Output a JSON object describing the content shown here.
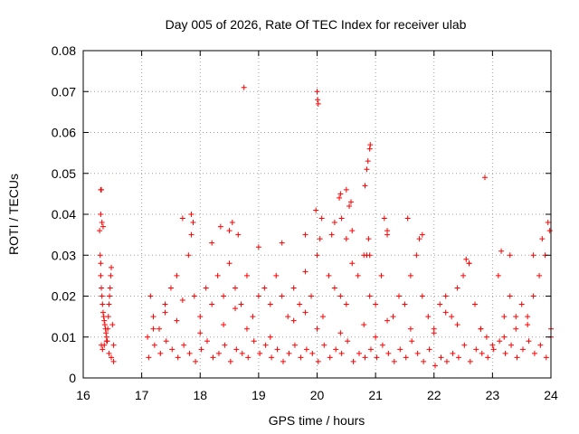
{
  "chart_data": {
    "type": "scatter",
    "title": "Day 005 of 2026, Rate Of TEC Index for receiver ulab",
    "xlabel": "GPS time / hours",
    "ylabel": "ROTI / TECUs",
    "xlim": [
      16,
      24
    ],
    "ylim": [
      0,
      0.08
    ],
    "xticks": [
      "16",
      "17",
      "18",
      "19",
      "20",
      "21",
      "22",
      "23",
      "24"
    ],
    "yticks": [
      "0",
      "0.01",
      "0.02",
      "0.03",
      "0.04",
      "0.05",
      "0.06",
      "0.07",
      "0.08"
    ],
    "grid": true,
    "marker": "+",
    "color": "#ff0000",
    "series": [
      {
        "name": "ROTI",
        "x": [
          16.28,
          16.29,
          16.3,
          16.3,
          16.31,
          16.32,
          16.33,
          16.34,
          16.35,
          16.36,
          16.37,
          16.38,
          16.39,
          16.4,
          16.41,
          16.42,
          16.43,
          16.44,
          16.45,
          16.46,
          16.47,
          16.48,
          16.5,
          16.52,
          16.31,
          16.33,
          16.36,
          16.4,
          16.44,
          16.48,
          16.52,
          16.3,
          16.31,
          16.32,
          16.34,
          16.3,
          17.1,
          17.15,
          17.2,
          17.3,
          17.4,
          17.5,
          17.6,
          17.7,
          17.8,
          17.85,
          17.9,
          18.0,
          18.1,
          18.2,
          18.3,
          18.4,
          18.5,
          18.6,
          18.7,
          18.8,
          18.9,
          19.0,
          19.1,
          19.2,
          19.3,
          19.4,
          19.5,
          19.6,
          19.7,
          19.8,
          19.9,
          20.0,
          20.1,
          20.2,
          20.3,
          20.4,
          20.5,
          20.6,
          20.7,
          20.8,
          20.9,
          21.0,
          21.1,
          21.2,
          21.3,
          21.4,
          21.5,
          21.6,
          21.7,
          21.8,
          21.9,
          22.0,
          22.1,
          22.2,
          22.3,
          22.4,
          22.5,
          22.6,
          22.7,
          22.8,
          22.9,
          23.0,
          23.1,
          23.2,
          23.3,
          23.4,
          23.5,
          23.6,
          23.7,
          23.8,
          23.9,
          24.0,
          17.12,
          17.22,
          17.32,
          17.42,
          17.52,
          17.62,
          17.72,
          17.82,
          17.92,
          18.02,
          18.12,
          18.22,
          18.32,
          18.42,
          18.52,
          18.62,
          18.72,
          18.82,
          18.92,
          19.02,
          19.12,
          19.22,
          19.32,
          19.42,
          19.52,
          19.62,
          19.72,
          19.82,
          19.92,
          20.02,
          20.12,
          20.22,
          20.32,
          20.42,
          20.52,
          20.62,
          20.72,
          20.82,
          20.92,
          21.02,
          21.12,
          21.22,
          21.32,
          21.42,
          21.52,
          21.62,
          21.72,
          21.82,
          21.92,
          22.02,
          22.12,
          22.22,
          22.32,
          22.42,
          22.52,
          22.62,
          22.72,
          22.82,
          22.92,
          23.02,
          23.12,
          23.22,
          23.32,
          23.42,
          23.52,
          23.62,
          23.72,
          23.82,
          23.92,
          17.7,
          17.85,
          17.88,
          18.2,
          18.35,
          18.5,
          18.55,
          18.65,
          19.0,
          19.4,
          19.8,
          20.05,
          20.3,
          20.5,
          20.6,
          20.85,
          20.88,
          20.9,
          21.15,
          21.2,
          21.55,
          21.75,
          21.8,
          22.55,
          22.6,
          23.15,
          23.3,
          23.7,
          23.85,
          23.95,
          23.98,
          18.75,
          20.0,
          20.02,
          20.01,
          19.98,
          20.38,
          20.5,
          20.42,
          20.55,
          20.58,
          20.82,
          20.85,
          20.87,
          20.9,
          20.91,
          22.87,
          20.4,
          20.25,
          20.08,
          17.2,
          17.6,
          18.0,
          18.4,
          18.8,
          19.2,
          19.6,
          20.0,
          20.4,
          20.8,
          21.2,
          21.6,
          22.0,
          22.4,
          22.8,
          23.2,
          23.6,
          24.0,
          17.4,
          18.6,
          19.8,
          21.0,
          22.2,
          23.4
        ],
        "y": [
          0.036,
          0.03,
          0.028,
          0.025,
          0.022,
          0.02,
          0.018,
          0.016,
          0.015,
          0.014,
          0.013,
          0.012,
          0.011,
          0.01,
          0.009,
          0.012,
          0.015,
          0.018,
          0.02,
          0.022,
          0.025,
          0.027,
          0.013,
          0.008,
          0.008,
          0.007,
          0.008,
          0.009,
          0.006,
          0.005,
          0.004,
          0.046,
          0.046,
          0.038,
          0.037,
          0.04,
          0.01,
          0.02,
          0.015,
          0.012,
          0.018,
          0.022,
          0.025,
          0.019,
          0.03,
          0.035,
          0.02,
          0.015,
          0.022,
          0.018,
          0.025,
          0.02,
          0.028,
          0.022,
          0.018,
          0.025,
          0.015,
          0.02,
          0.022,
          0.018,
          0.025,
          0.02,
          0.015,
          0.022,
          0.018,
          0.026,
          0.02,
          0.03,
          0.015,
          0.025,
          0.022,
          0.02,
          0.018,
          0.028,
          0.025,
          0.03,
          0.02,
          0.01,
          0.025,
          0.035,
          0.015,
          0.02,
          0.018,
          0.025,
          0.03,
          0.02,
          0.015,
          0.012,
          0.018,
          0.02,
          0.015,
          0.022,
          0.025,
          0.028,
          0.018,
          0.012,
          0.01,
          0.008,
          0.025,
          0.015,
          0.02,
          0.012,
          0.018,
          0.015,
          0.02,
          0.025,
          0.03,
          0.01,
          0.005,
          0.008,
          0.006,
          0.009,
          0.007,
          0.005,
          0.008,
          0.006,
          0.004,
          0.007,
          0.009,
          0.005,
          0.006,
          0.008,
          0.004,
          0.007,
          0.006,
          0.005,
          0.009,
          0.006,
          0.008,
          0.005,
          0.007,
          0.004,
          0.006,
          0.008,
          0.005,
          0.007,
          0.006,
          0.004,
          0.008,
          0.005,
          0.007,
          0.006,
          0.009,
          0.004,
          0.006,
          0.005,
          0.007,
          0.005,
          0.008,
          0.006,
          0.004,
          0.007,
          0.005,
          0.009,
          0.006,
          0.004,
          0.007,
          0.003,
          0.005,
          0.004,
          0.006,
          0.005,
          0.008,
          0.004,
          0.007,
          0.006,
          0.005,
          0.007,
          0.009,
          0.006,
          0.008,
          0.005,
          0.007,
          0.009,
          0.006,
          0.008,
          0.005,
          0.039,
          0.04,
          0.038,
          0.033,
          0.037,
          0.036,
          0.038,
          0.035,
          0.032,
          0.033,
          0.035,
          0.034,
          0.038,
          0.034,
          0.036,
          0.03,
          0.034,
          0.03,
          0.039,
          0.036,
          0.039,
          0.034,
          0.035,
          0.029,
          0.028,
          0.031,
          0.03,
          0.03,
          0.034,
          0.038,
          0.036,
          0.071,
          0.07,
          0.067,
          0.068,
          0.041,
          0.044,
          0.046,
          0.039,
          0.042,
          0.043,
          0.047,
          0.051,
          0.053,
          0.056,
          0.057,
          0.049,
          0.045,
          0.035,
          0.039,
          0.012,
          0.014,
          0.011,
          0.013,
          0.012,
          0.01,
          0.014,
          0.012,
          0.011,
          0.013,
          0.014,
          0.012,
          0.011,
          0.013,
          0.012,
          0.01,
          0.013,
          0.012,
          0.016,
          0.017,
          0.016,
          0.018,
          0.016,
          0.015
        ]
      }
    ]
  }
}
